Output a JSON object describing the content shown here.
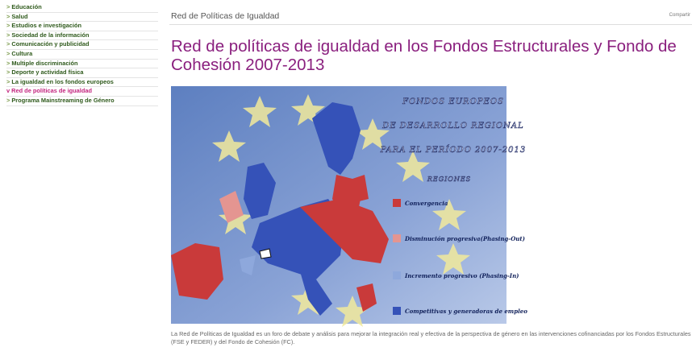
{
  "sidebar": {
    "items": [
      "Educación",
      "Salud",
      "Estudios e investigación",
      "Sociedad de la información",
      "Comunicación y publicidad",
      "Cultura",
      "Multiple discriminación",
      "Deporte y actividad física",
      "La igualdad en los fondos europeos",
      "Red de políticas de igualdad",
      "Programa Mainstreaming de Género"
    ],
    "active_index": 9
  },
  "header": {
    "breadcrumb": "Red de Políticas de Igualdad",
    "share": "Compartir"
  },
  "title": "Red de políticas de igualdad en los Fondos Estructurales y Fondo de Cohesión 2007-2013",
  "map": {
    "heading": [
      "FONDOS EUROPEOS",
      "DE DESARROLLO REGIONAL",
      "PARA EL PERÍODO 2007-2013"
    ],
    "legend_title": "REGIONES",
    "legend": [
      {
        "label": "Convergencia",
        "color": "#c93a3a"
      },
      {
        "label": "Disminución progresiva(Phasing-Out)",
        "color": "#e49591"
      },
      {
        "label": "Incremento progresivo (Phasing-In)",
        "color": "#8ea8dc"
      },
      {
        "label": "Competitivas y generadoras de empleo",
        "color": "#3552b8"
      }
    ]
  },
  "description": "La Red de Políticas de Igualdad es un foro de debate y análisis para mejorar la integración real y efectiva de la perspectiva de género en las intervenciones cofinanciadas por los Fondos Estructurales (FSE y FEDER) y del Fondo de Cohesión (FC)."
}
